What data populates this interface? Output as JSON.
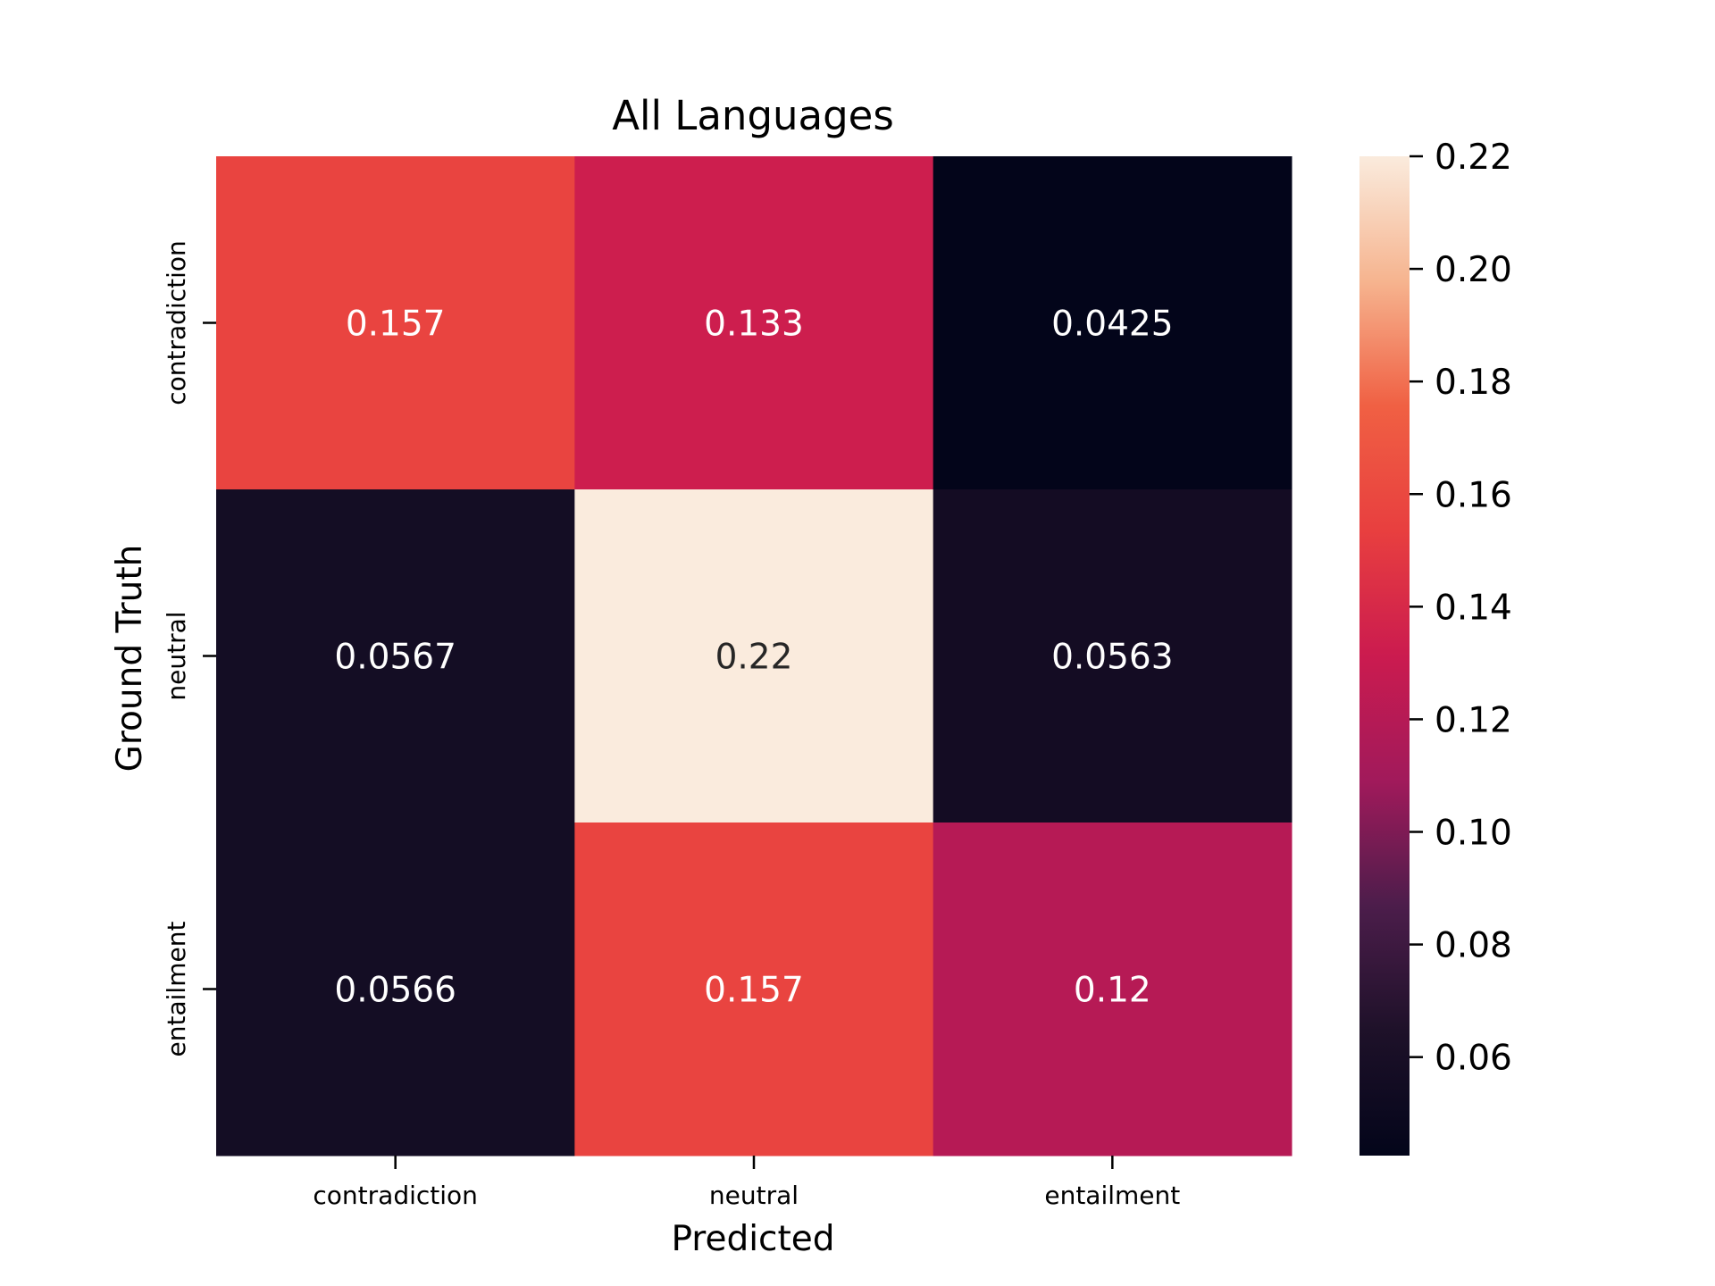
{
  "chart_data": {
    "type": "heatmap",
    "title": "All Languages",
    "xlabel": "Predicted",
    "ylabel": "Ground Truth",
    "x_categories": [
      "contradiction",
      "neutral",
      "entailment"
    ],
    "y_categories": [
      "contradiction",
      "neutral",
      "entailment"
    ],
    "values": [
      [
        0.157,
        0.133,
        0.0425
      ],
      [
        0.0567,
        0.22,
        0.0563
      ],
      [
        0.0566,
        0.157,
        0.12
      ]
    ],
    "value_labels": [
      [
        "0.157",
        "0.133",
        "0.0425"
      ],
      [
        "0.0567",
        "0.22",
        "0.0563"
      ],
      [
        "0.0566",
        "0.157",
        "0.12"
      ]
    ],
    "colorbar": {
      "min": 0.0425,
      "max": 0.22,
      "ticks": [
        0.06,
        0.08,
        0.1,
        0.12,
        0.14,
        0.16,
        0.18,
        0.2,
        0.22
      ],
      "tick_labels": [
        "0.06",
        "0.08",
        "0.10",
        "0.12",
        "0.14",
        "0.16",
        "0.18",
        "0.20",
        "0.22"
      ]
    },
    "colormap": "rocket",
    "colormap_stops": [
      "#03051a",
      "#1e1129",
      "#4c1d4b",
      "#a11a5b",
      "#cb1b4f",
      "#e83f3f",
      "#f06043",
      "#f6b48f",
      "#faebdd"
    ],
    "grid": false,
    "legend": "colorbar-right"
  }
}
